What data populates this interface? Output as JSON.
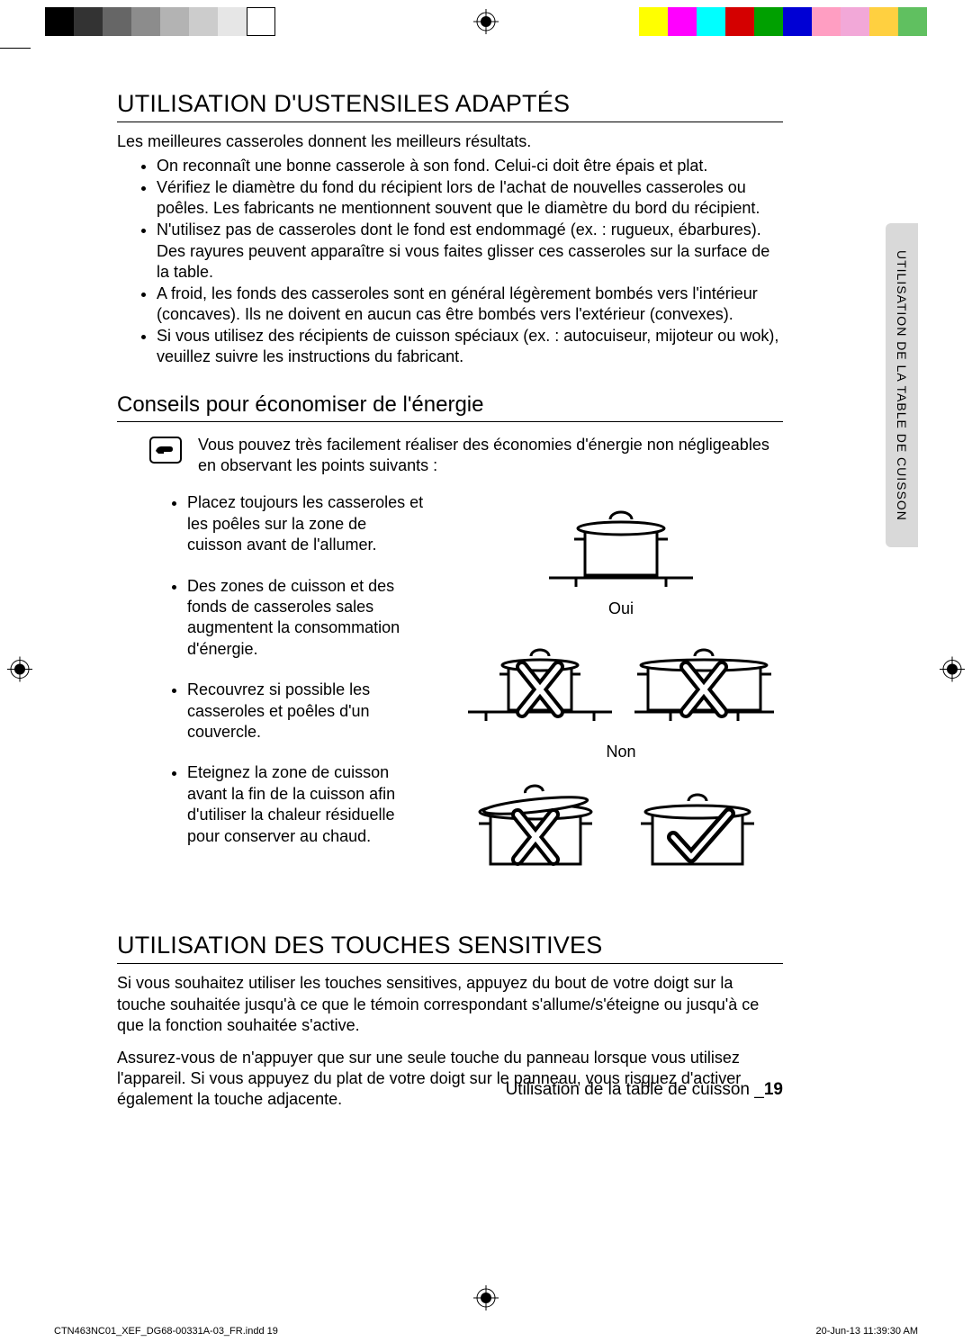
{
  "colorbar": {
    "left": [
      "#000000",
      "#333333",
      "#666666",
      "#8c8c8c",
      "#b3b3b3",
      "#cccccc",
      "#e6e6e6",
      "#ffffff"
    ],
    "right": [
      "#ffff00",
      "#ff00ff",
      "#00ffff",
      "#d40000",
      "#00a000",
      "#0000d4",
      "#ff9ec2",
      "#f2a8d8",
      "#ffd040",
      "#60c060"
    ]
  },
  "section1": {
    "heading": "UTILISATION D'USTENSILES ADAPTÉS",
    "intro": "Les meilleures casseroles donnent les meilleurs résultats.",
    "bullets": [
      "On reconnaît une bonne casserole à son fond. Celui-ci doit être épais et plat.",
      "Vérifiez le diamètre du fond du récipient lors de l'achat de nouvelles casseroles ou poêles. Les fabricants ne mentionnent souvent que le diamètre du bord du récipient.",
      "N'utilisez pas de casseroles dont le fond est endommagé (ex. : rugueux, ébarbures). Des rayures peuvent apparaître si vous faites glisser ces casseroles sur la surface de la table.",
      "A froid, les fonds des casseroles sont en général légèrement bombés vers l'intérieur (concaves). Ils ne doivent en aucun cas être bombés vers l'extérieur (convexes).",
      "Si vous utilisez des récipients de cuisson spéciaux (ex. : autocuiseur, mijoteur ou wok), veuillez suivre les instructions du fabricant."
    ]
  },
  "subsection": {
    "heading": "Conseils pour économiser de l'énergie",
    "tip": "Vous pouvez très facilement réaliser des économies d'énergie non négligeables en observant les points suivants :",
    "tips": [
      "Placez toujours les casseroles et les poêles sur la zone de cuisson avant de l'allumer.",
      "Des zones de cuisson et des fonds de casseroles sales augmentent la consommation d'énergie.",
      "Recouvrez si possible les casseroles et poêles d'un couvercle.",
      "Eteignez la zone de cuisson avant la fin de la cuisson afin d'utiliser la chaleur résiduelle pour conserver au chaud."
    ]
  },
  "figures": {
    "yes_label": "Oui",
    "no_label": "Non"
  },
  "section2": {
    "heading": "UTILISATION DES TOUCHES SENSITIVES",
    "para1": "Si vous souhaitez utiliser les touches sensitives, appuyez du bout de votre doigt sur la touche souhaitée jusqu'à ce que le témoin correspondant s'allume/s'éteigne ou jusqu'à ce que la fonction souhaitée s'active.",
    "para2": "Assurez-vous de n'appuyer que sur une seule touche du panneau lorsque vous utilisez l'appareil. Si vous appuyez du plat de votre doigt sur le panneau, vous risquez d'activer également la touche adjacente."
  },
  "sidetab": "UTILISATION DE LA TABLE DE CUISSON",
  "footer": {
    "text": "Utilisation de la table de cuisson _",
    "pagenum": "19"
  },
  "meta": {
    "file": "CTN463NC01_XEF_DG68-00331A-03_FR.indd   19",
    "date": "20-Jun-13   11:39:30 AM"
  },
  "svg": {
    "pot_stroke": "#000000",
    "pot_fill": "#ffffff",
    "x_color": "#000000",
    "check_color": "#000000"
  }
}
